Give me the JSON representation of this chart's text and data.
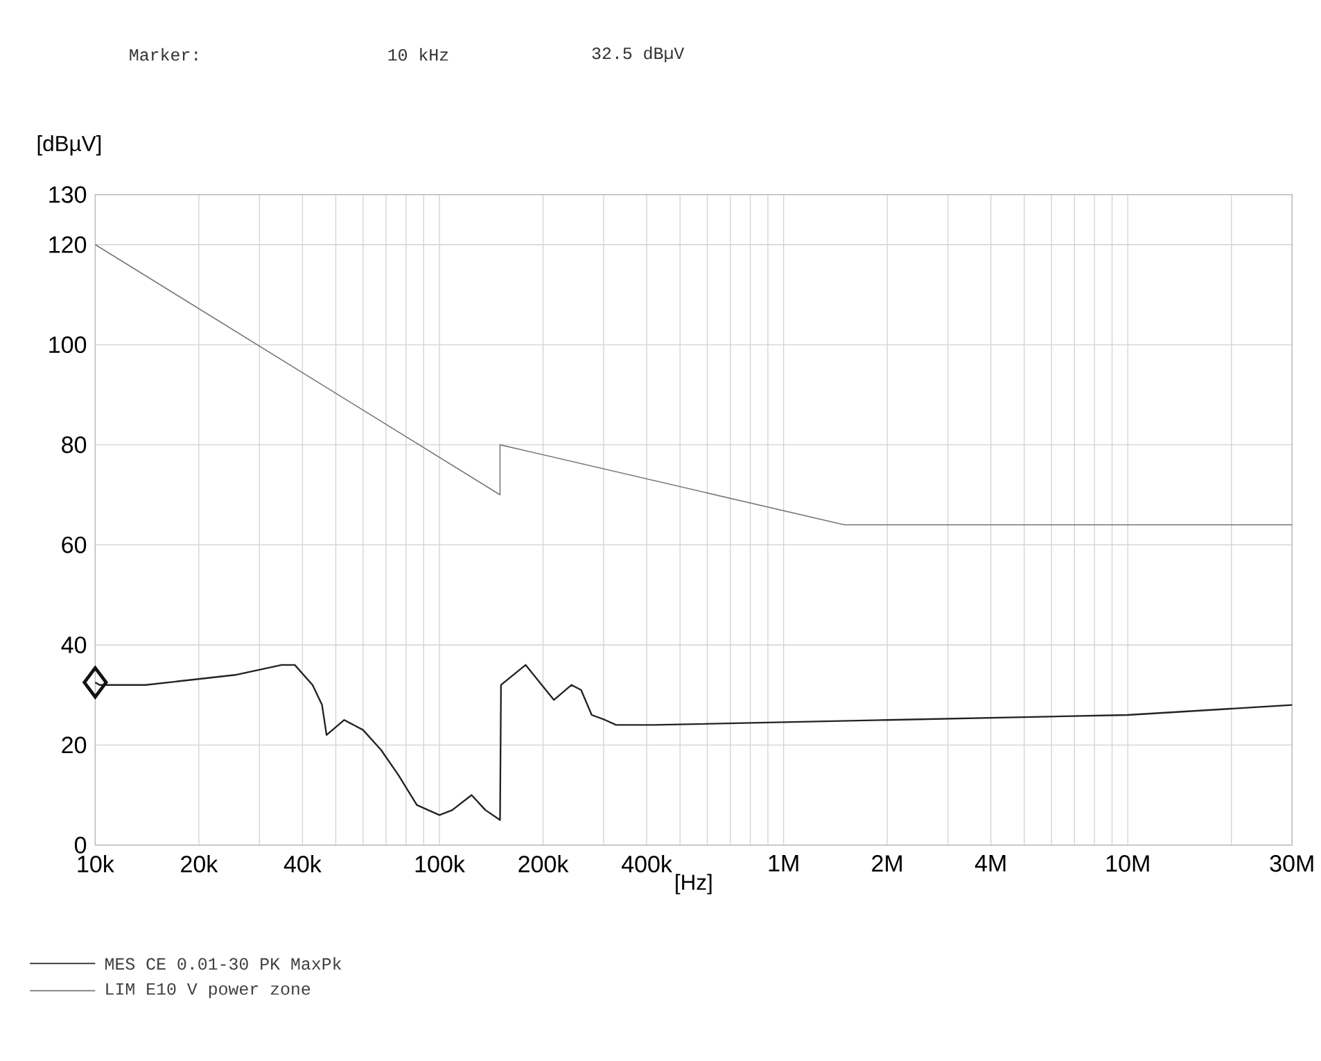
{
  "chart_data": {
    "type": "line",
    "annotations": [
      "Marker:",
      "10 kHz",
      "32.5 dBµV"
    ],
    "xlabel": "[Hz]",
    "ylabel": "[dBµV]",
    "log": "x",
    "grid": true,
    "legend": "bottom",
    "line_style": "solid",
    "marker": "none",
    "xlim": [
      10000,
      30000000
    ],
    "ylim": [
      0,
      130
    ],
    "xticks": [
      {
        "value": 10000,
        "label": "10k"
      },
      {
        "value": 20000,
        "label": "20k"
      },
      {
        "value": 30000,
        "label": null
      },
      {
        "value": 40000,
        "label": "40k"
      },
      {
        "value": 50000,
        "label": null
      },
      {
        "value": 60000,
        "label": null
      },
      {
        "value": 70000,
        "label": null
      },
      {
        "value": 80000,
        "label": null
      },
      {
        "value": 90000,
        "label": null
      },
      {
        "value": 100000,
        "label": "100k"
      },
      {
        "value": 200000,
        "label": "200k"
      },
      {
        "value": 300000,
        "label": null
      },
      {
        "value": 400000,
        "label": "400k"
      },
      {
        "value": 500000,
        "label": null
      },
      {
        "value": 600000,
        "label": null
      },
      {
        "value": 700000,
        "label": null
      },
      {
        "value": 800000,
        "label": null
      },
      {
        "value": 900000,
        "label": null
      },
      {
        "value": 1000000,
        "label": "1M"
      },
      {
        "value": 2000000,
        "label": "2M"
      },
      {
        "value": 3000000,
        "label": null
      },
      {
        "value": 4000000,
        "label": "4M"
      },
      {
        "value": 5000000,
        "label": null
      },
      {
        "value": 6000000,
        "label": null
      },
      {
        "value": 7000000,
        "label": null
      },
      {
        "value": 8000000,
        "label": null
      },
      {
        "value": 9000000,
        "label": null
      },
      {
        "value": 10000000,
        "label": "10M"
      },
      {
        "value": 20000000,
        "label": null
      },
      {
        "value": 30000000,
        "label": "30M"
      }
    ],
    "yticks": [
      0,
      20,
      40,
      60,
      80,
      100,
      120,
      130
    ],
    "series": [
      {
        "name": "MES  CE 0.01-30 PK MaxPk",
        "color": "#222222",
        "x": [
          10000,
          10300,
          14000,
          18900,
          25500,
          34800,
          38000,
          42800,
          45600,
          47000,
          52900,
          60000,
          67700,
          76000,
          86000,
          100000,
          109000,
          124000,
          136000,
          150000,
          151000,
          178000,
          215000,
          242000,
          258000,
          277000,
          303000,
          326000,
          417000,
          2000000,
          10000000,
          30000000
        ],
        "values": [
          32.5,
          32,
          32,
          33,
          34,
          36,
          36,
          32,
          28,
          22,
          25,
          23,
          19,
          14,
          8,
          6,
          7,
          10,
          7,
          5,
          32,
          36,
          29,
          32,
          31,
          26,
          25,
          24,
          24,
          25,
          26,
          28
        ]
      },
      {
        "name": "LIM  E10 V power zone",
        "color": "#777777",
        "x": [
          10000,
          150000,
          150000,
          1500000,
          30000000
        ],
        "values": [
          120,
          70,
          80,
          64,
          64
        ]
      },
      {
        "type": "scatter",
        "marker": "diamond",
        "color": "#111111",
        "x": [
          10000
        ],
        "values": [
          32.5
        ]
      }
    ]
  }
}
